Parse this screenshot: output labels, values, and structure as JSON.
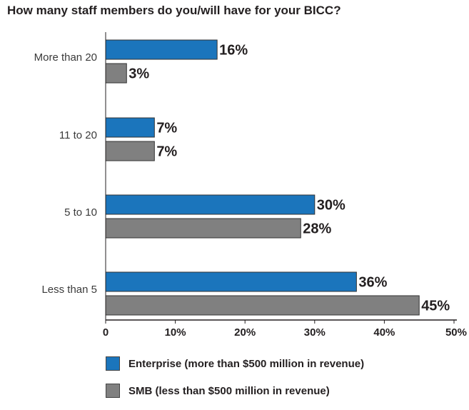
{
  "chart_data": {
    "type": "bar",
    "orientation": "horizontal",
    "title": "How many staff members do you/will have for your BICC?",
    "categories": [
      "More than 20",
      "11 to 20",
      "5 to 10",
      "Less than 5"
    ],
    "series": [
      {
        "name": "Enterprise (more than $500 million in revenue)",
        "color": "#1b75bc",
        "values": [
          16,
          7,
          30,
          36
        ]
      },
      {
        "name": "SMB (less than $500 million in revenue)",
        "color": "#808080",
        "values": [
          3,
          7,
          28,
          45
        ]
      }
    ],
    "value_suffix": "%",
    "xlim": [
      0,
      50
    ],
    "xticks": [
      "0",
      "10%",
      "20%",
      "30%",
      "40%",
      "50%"
    ],
    "grid": false,
    "legend_position": "bottom"
  }
}
